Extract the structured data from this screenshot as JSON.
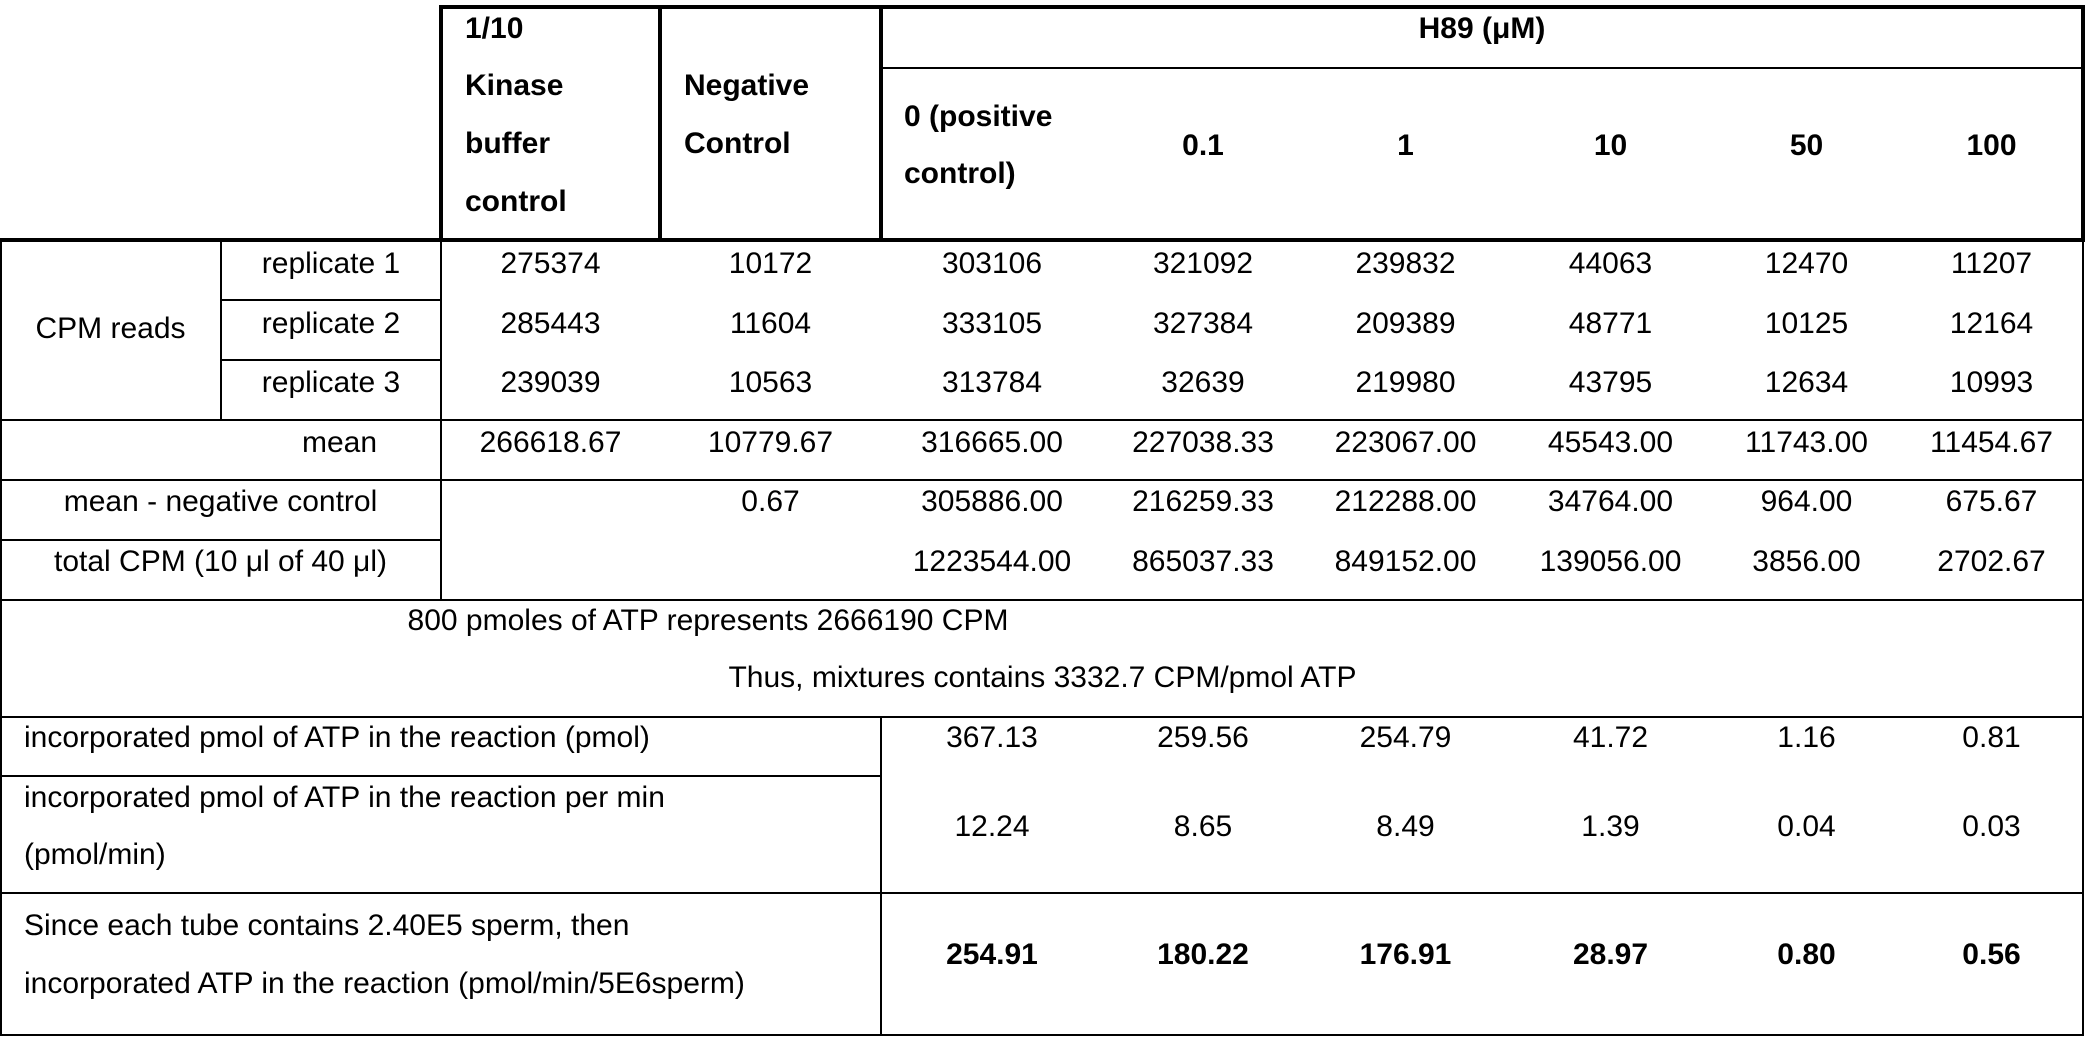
{
  "header": {
    "kinase_buffer": [
      "1/10",
      "Kinase",
      "buffer",
      "control"
    ],
    "negative_control": [
      "Negative",
      "Control"
    ],
    "group": "H89 (μM)",
    "concentrations": [
      "0 (positive",
      "control)",
      "0.1",
      "1",
      "10",
      "50",
      "100"
    ]
  },
  "cpm": {
    "label": "CPM reads",
    "replicates": [
      {
        "name": "replicate 1",
        "values": [
          "275374",
          "10172",
          "303106",
          "321092",
          "239832",
          "44063",
          "12470",
          "11207"
        ]
      },
      {
        "name": "replicate 2",
        "values": [
          "285443",
          "11604",
          "333105",
          "327384",
          "209389",
          "48771",
          "10125",
          "12164"
        ]
      },
      {
        "name": "replicate 3",
        "values": [
          "239039",
          "10563",
          "313784",
          "32639",
          "219980",
          "43795",
          "12634",
          "10993"
        ]
      }
    ]
  },
  "mean": {
    "label": "mean",
    "values": [
      "266618.67",
      "10779.67",
      "316665.00",
      "227038.33",
      "223067.00",
      "45543.00",
      "11743.00",
      "11454.67"
    ]
  },
  "mean_minus_neg": {
    "label": "mean - negative control",
    "values": [
      "0.67",
      "305886.00",
      "216259.33",
      "212288.00",
      "34764.00",
      "964.00",
      "675.67"
    ]
  },
  "total_cpm": {
    "label": "total CPM (10 μl of 40 μl)",
    "values": [
      "1223544.00",
      "865037.33",
      "849152.00",
      "139056.00",
      "3856.00",
      "2702.67"
    ]
  },
  "note": [
    "800 pmoles of ATP represents 2666190 CPM",
    "Thus, mixtures contains 3332.7 CPM/pmol ATP"
  ],
  "incorporated": {
    "label": "incorporated pmol of ATP in the reaction (pmol)",
    "values": [
      "367.13",
      "259.56",
      "254.79",
      "41.72",
      "1.16",
      "0.81"
    ]
  },
  "per_min": {
    "label": [
      "incorporated pmol of ATP in the reaction per min",
      "(pmol/min)"
    ],
    "values": [
      "12.24",
      "8.65",
      "8.49",
      "1.39",
      "0.04",
      "0.03"
    ]
  },
  "per_sperm": {
    "label": [
      "Since each tube contains 2.40E5 sperm, then",
      "incorporated ATP in the reaction (pmol/min/5E6sperm)"
    ],
    "values": [
      "254.91",
      "180.22",
      "176.91",
      "28.97",
      "0.80",
      "0.56"
    ]
  }
}
